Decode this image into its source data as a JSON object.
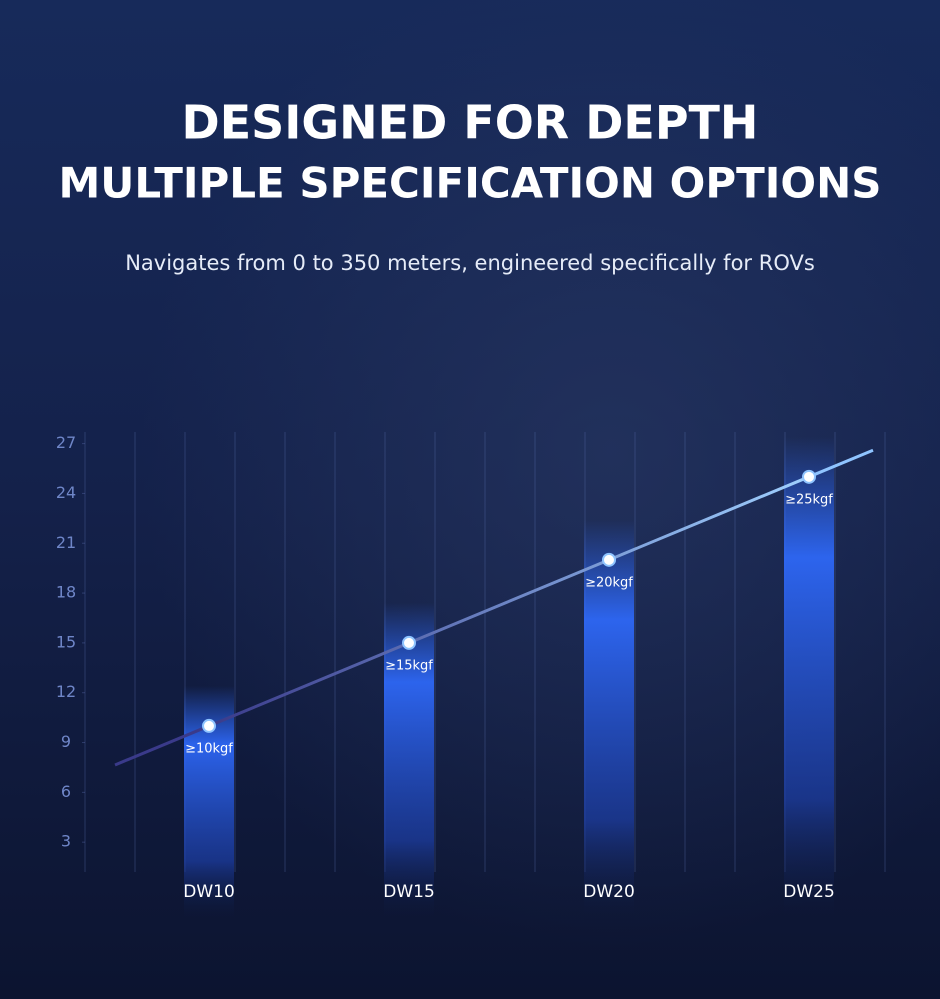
{
  "chart_data": {
    "type": "bar",
    "title": "DESIGNED FOR DEPTH",
    "subtitle": "MULTIPLE SPECIFICATION OPTIONS",
    "description": "Navigates from 0 to 350 meters, engineered specifically for ROVs",
    "categories": [
      "DW10",
      "DW15",
      "DW20",
      "DW25"
    ],
    "values": [
      10,
      15,
      20,
      25
    ],
    "value_labels": [
      "≥10kgf",
      "≥15kgf",
      "≥20kgf",
      "≥25kgf"
    ],
    "color": "#2f6bff",
    "line_color": "#8fc4ff",
    "ylim": [
      0,
      28
    ],
    "yticks": [
      3,
      6,
      9,
      12,
      15,
      18,
      21,
      24,
      27
    ]
  }
}
